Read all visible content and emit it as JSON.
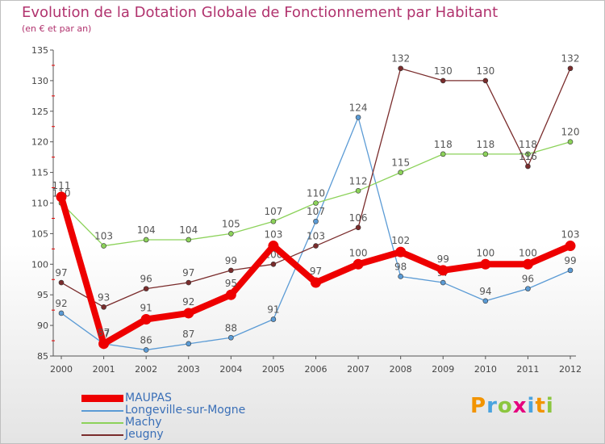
{
  "title": "Evolution de la Dotation Globale de Fonctionnement par Habitant",
  "subtitle": "(en € et par an)",
  "logo": {
    "letters": [
      "P",
      "r",
      "o",
      "x",
      "i",
      "t",
      "i"
    ],
    "colors": [
      "#f29400",
      "#4aa3df",
      "#8cc63f",
      "#e5007e",
      "#4aa3df",
      "#f29400",
      "#8cc63f"
    ]
  },
  "chart_data": {
    "type": "line",
    "title": "Evolution de la Dotation Globale de Fonctionnement par Habitant",
    "subtitle": "(en € et par an)",
    "x": [
      "2000",
      "2001",
      "2002",
      "2003",
      "2004",
      "2005",
      "2006",
      "2007",
      "2008",
      "2009",
      "2010",
      "2011",
      "2012"
    ],
    "ylim": [
      85,
      135
    ],
    "yticks": [
      85,
      90,
      95,
      100,
      105,
      110,
      115,
      120,
      125,
      130,
      135
    ],
    "grid": false,
    "legend_position": "bottom-left",
    "series": [
      {
        "name": "Longeville-sur-Mogne",
        "color": "#5b9bd5",
        "values": [
          92,
          87,
          86,
          87,
          88,
          91,
          107,
          124,
          98,
          97,
          94,
          96,
          99
        ]
      },
      {
        "name": "Machy",
        "color": "#8cd25a",
        "values": [
          110,
          103,
          104,
          104,
          105,
          107,
          110,
          112,
          115,
          118,
          118,
          118,
          120
        ]
      },
      {
        "name": "Jeugny",
        "color": "#7a2c2c",
        "values": [
          97,
          93,
          96,
          97,
          99,
          100,
          103,
          106,
          132,
          130,
          130,
          116,
          132
        ]
      },
      {
        "name": "MAUPAS",
        "color": "#ee0000",
        "values": [
          111,
          87,
          91,
          92,
          95,
          103,
          97,
          100,
          102,
          99,
          100,
          100,
          103
        ]
      }
    ],
    "legend": [
      {
        "name": "MAUPAS",
        "color": "#ee0000"
      },
      {
        "name": "Longeville-sur-Mogne",
        "color": "#5b9bd5"
      },
      {
        "name": "Machy",
        "color": "#8cd25a"
      },
      {
        "name": "Jeugny",
        "color": "#7a2c2c"
      }
    ]
  }
}
